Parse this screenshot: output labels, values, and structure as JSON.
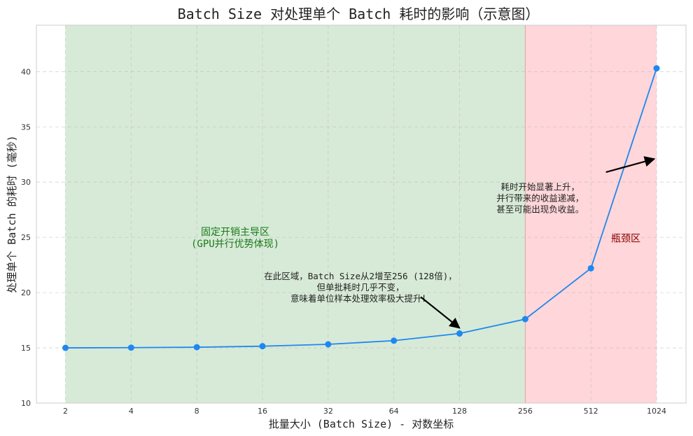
{
  "chart_data": {
    "type": "line",
    "title": "Batch Size 对处理单个 Batch 耗时的影响（示意图）",
    "xlabel": "批量大小 (Batch Size) - 对数坐标",
    "ylabel": "处理单个 Batch 的耗时 (毫秒)",
    "x_scale": "log2",
    "x": [
      2,
      4,
      8,
      16,
      32,
      64,
      128,
      256,
      512,
      1024
    ],
    "x_tick_labels": [
      "2",
      "4",
      "8",
      "16",
      "32",
      "64",
      "128",
      "256",
      "512",
      "1024"
    ],
    "ylim": [
      10,
      44.2
    ],
    "y_ticks": [
      10,
      15,
      20,
      25,
      30,
      35,
      40
    ],
    "grid": true,
    "series": [
      {
        "values": [
          15.0,
          15.02,
          15.06,
          15.15,
          15.32,
          15.65,
          16.3,
          17.6,
          22.2,
          40.3
        ],
        "color": "#1e88f0"
      }
    ],
    "regions": [
      {
        "label_lines": [
          "固定开销主导区",
          "(GPU并行优势体现)"
        ],
        "x_from": 2,
        "x_to": 256,
        "color": "#d7ead7",
        "text_color": "#1a7a1a"
      },
      {
        "label_lines": [
          "瓶颈区"
        ],
        "x_from": 256,
        "x_to": 1024,
        "color": "#ffd6d9",
        "text_color": "#8b0000"
      }
    ],
    "annotations": [
      {
        "lines": [
          "在此区域，Batch Size从2增至256 (128倍)，",
          "但单批耗时几乎不变，",
          "意味着单位样本处理效率极大提升！"
        ],
        "text_x": 45,
        "text_y": 21.2,
        "arrow_from": [
          85,
          19.6
        ],
        "arrow_to": [
          128,
          16.8
        ]
      },
      {
        "lines": [
          "耗时开始显著上升，",
          "并行带来的收益递减，",
          "甚至可能出现负收益。"
        ],
        "text_x": 300,
        "text_y": 29.3,
        "arrow_from": [
          600,
          30.9
        ],
        "arrow_to": [
          1000,
          32.1
        ]
      }
    ]
  }
}
